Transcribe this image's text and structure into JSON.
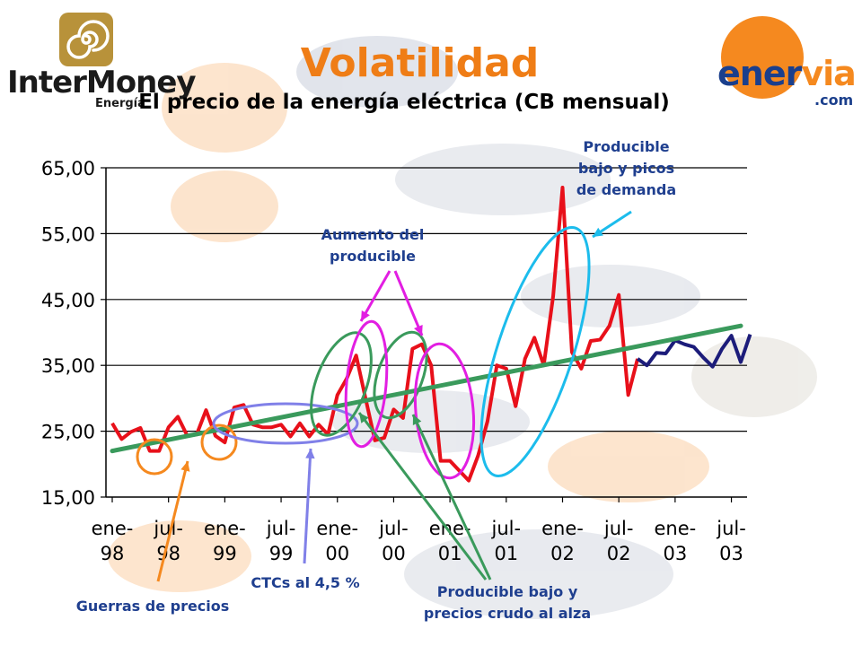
{
  "header": {
    "title": "Volatilidad",
    "subtitle": "El precio de la energía eléctrica (CB mensual)"
  },
  "logos": {
    "left_name": "InterMoney",
    "left_sub": "Energía",
    "right_name_a": "ener",
    "right_name_b": "via",
    "right_domain": ".com",
    "colors": {
      "orange": "#f5891f",
      "blue": "#1b3f8c",
      "gold": "#b8923a"
    }
  },
  "annotations": {
    "guerras": "Guerras de precios",
    "ctcs": "CTCs al 4,5 %",
    "aumento": "Aumento del\nproducible",
    "crudo": "Producible bajo y\nprecios crudo al alza",
    "picos": "Producible\nbajo y picos\nde demanda"
  },
  "chart_data": {
    "type": "line",
    "title": "El precio de la energía eléctrica (CB mensual)",
    "xlabel": "",
    "ylabel": "",
    "ylim": [
      15,
      65
    ],
    "yticks": [
      "15,00",
      "25,00",
      "35,00",
      "45,00",
      "55,00",
      "65,00"
    ],
    "xticks": [
      {
        "index": 0,
        "top": "ene-",
        "bottom": "98"
      },
      {
        "index": 6,
        "top": "jul-",
        "bottom": "98"
      },
      {
        "index": 12,
        "top": "ene-",
        "bottom": "99"
      },
      {
        "index": 18,
        "top": "jul-",
        "bottom": "99"
      },
      {
        "index": 24,
        "top": "ene-",
        "bottom": "00"
      },
      {
        "index": 30,
        "top": "jul-",
        "bottom": "00"
      },
      {
        "index": 36,
        "top": "ene-",
        "bottom": "01"
      },
      {
        "index": 42,
        "top": "jul-",
        "bottom": "01"
      },
      {
        "index": 48,
        "top": "ene-",
        "bottom": "02"
      },
      {
        "index": 54,
        "top": "jul-",
        "bottom": "02"
      },
      {
        "index": 60,
        "top": "ene-",
        "bottom": "03"
      },
      {
        "index": 66,
        "top": "jul-",
        "bottom": "03"
      }
    ],
    "grid": true,
    "series": [
      {
        "color": "#e8101a",
        "start_index": 0,
        "values": [
          26.2,
          23.8,
          24.9,
          25.5,
          22.0,
          22.0,
          25.6,
          27.2,
          24.3,
          24.5,
          28.2,
          24.3,
          23.3,
          28.6,
          29.0,
          26.0,
          25.6,
          25.6,
          26.0,
          24.2,
          26.2,
          24.2,
          26.0,
          24.5,
          30.5,
          33.0,
          36.5,
          30.0,
          23.6,
          24.0,
          28.3,
          27.0,
          37.5,
          38.2,
          35.0,
          20.5,
          20.5,
          19.0,
          17.5,
          21.3,
          26.5,
          35.0,
          34.5,
          28.8,
          36.0,
          39.2,
          35.0,
          45.5,
          62.0,
          37.0,
          34.5,
          38.7,
          38.9,
          41.0,
          45.7,
          30.5,
          36.0
        ]
      },
      {
        "color": "#1c1c7a",
        "start_index": 56,
        "values": [
          36.0,
          35.0,
          36.9,
          36.8,
          38.8,
          38.2,
          37.8,
          36.2,
          34.8,
          37.5,
          39.5,
          35.5,
          39.7
        ]
      },
      {
        "color": "#3a9a5c",
        "start_index": 0,
        "values": [
          22.0,
          41.0
        ],
        "trend": true,
        "end_index": 67
      }
    ]
  }
}
